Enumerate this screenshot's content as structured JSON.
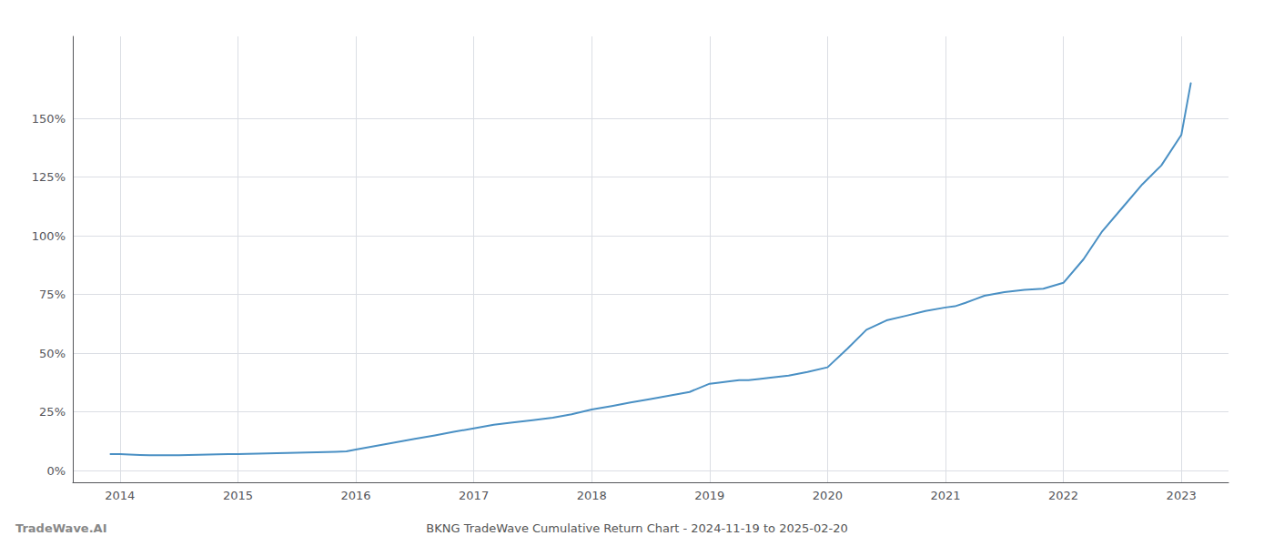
{
  "chart_data": {
    "type": "line",
    "title": "BKNG TradeWave Cumulative Return Chart - 2024-11-19 to 2025-02-20",
    "annotations": [
      "TradeWave.AI"
    ],
    "color": "#4a90c4",
    "grid": true,
    "x": [
      2013.92,
      2014.0,
      2014.08,
      2014.17,
      2014.25,
      2014.33,
      2014.42,
      2014.5,
      2014.58,
      2014.67,
      2014.75,
      2014.83,
      2014.92,
      2015.0,
      2015.08,
      2015.17,
      2015.25,
      2015.33,
      2015.42,
      2015.5,
      2015.58,
      2015.67,
      2015.75,
      2015.83,
      2015.92,
      2016.0,
      2016.17,
      2016.33,
      2016.5,
      2016.67,
      2016.83,
      2017.0,
      2017.17,
      2017.33,
      2017.5,
      2017.67,
      2017.83,
      2018.0,
      2018.17,
      2018.33,
      2018.5,
      2018.67,
      2018.83,
      2019.0,
      2019.08,
      2019.17,
      2019.25,
      2019.33,
      2019.42,
      2019.5,
      2019.67,
      2019.83,
      2020.0,
      2020.17,
      2020.33,
      2020.5,
      2020.67,
      2020.83,
      2021.0,
      2021.08,
      2021.17,
      2021.25,
      2021.33,
      2021.5,
      2021.67,
      2021.83,
      2022.0,
      2022.17,
      2022.33,
      2022.5,
      2022.67,
      2022.83,
      2023.0,
      2023.08
    ],
    "values": [
      0.07,
      0.07,
      0.068,
      0.066,
      0.065,
      0.065,
      0.065,
      0.065,
      0.066,
      0.067,
      0.068,
      0.069,
      0.07,
      0.07,
      0.071,
      0.072,
      0.073,
      0.074,
      0.075,
      0.076,
      0.077,
      0.078,
      0.079,
      0.08,
      0.082,
      0.09,
      0.105,
      0.12,
      0.135,
      0.15,
      0.165,
      0.18,
      0.195,
      0.205,
      0.215,
      0.225,
      0.24,
      0.26,
      0.275,
      0.29,
      0.305,
      0.32,
      0.335,
      0.37,
      0.375,
      0.38,
      0.385,
      0.385,
      0.39,
      0.395,
      0.405,
      0.42,
      0.44,
      0.52,
      0.6,
      0.64,
      0.66,
      0.68,
      0.695,
      0.7,
      0.715,
      0.73,
      0.745,
      0.76,
      0.77,
      0.775,
      0.8,
      0.9,
      1.02,
      1.12,
      1.22,
      1.3,
      1.43,
      1.65
    ],
    "xlim": [
      2013.6,
      2023.4
    ],
    "xticks": [
      2014,
      2015,
      2016,
      2017,
      2018,
      2019,
      2020,
      2021,
      2022,
      2023
    ],
    "ylim": [
      -0.05,
      1.85
    ],
    "yticks": [
      {
        "value": 0,
        "label": "0%"
      },
      {
        "value": 0.25,
        "label": "25%"
      },
      {
        "value": 0.5,
        "label": "50%"
      },
      {
        "value": 0.75,
        "label": "75%"
      },
      {
        "value": 1.0,
        "label": "100%"
      },
      {
        "value": 1.25,
        "label": "125%"
      },
      {
        "value": 1.5,
        "label": "150%"
      }
    ]
  }
}
